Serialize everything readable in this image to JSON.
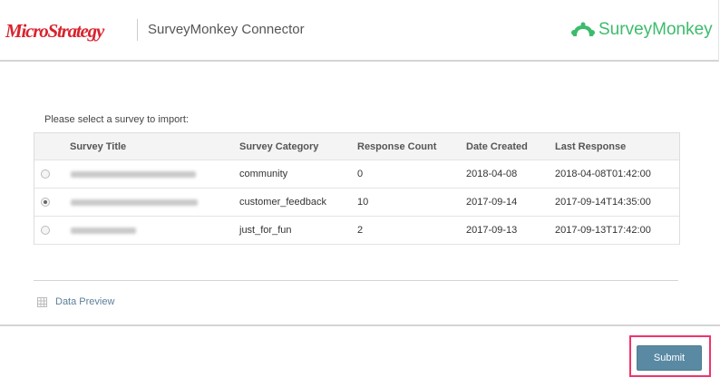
{
  "header": {
    "brand": "MicroStrategy",
    "title": "SurveyMonkey Connector",
    "partner_logo": "SurveyMonkey"
  },
  "prompt": "Please select a survey to import:",
  "table": {
    "columns": [
      "Survey Title",
      "Survey Category",
      "Response Count",
      "Date Created",
      "Last Response"
    ],
    "rows": [
      {
        "selected": false,
        "category": "community",
        "responses": "0",
        "created": "2018-04-08",
        "last": "2018-04-08T01:42:00"
      },
      {
        "selected": true,
        "category": "customer_feedback",
        "responses": "10",
        "created": "2017-09-14",
        "last": "2017-09-14T14:35:00"
      },
      {
        "selected": false,
        "category": "just_for_fun",
        "responses": "2",
        "created": "2017-09-13",
        "last": "2017-09-13T17:42:00"
      }
    ]
  },
  "data_preview": "Data Preview",
  "submit": "Submit",
  "colors": {
    "brand_red": "#d9232e",
    "surveymonkey_green": "#3dbb6c",
    "submit": "#5a8aa3",
    "highlight": "#f0336b"
  }
}
